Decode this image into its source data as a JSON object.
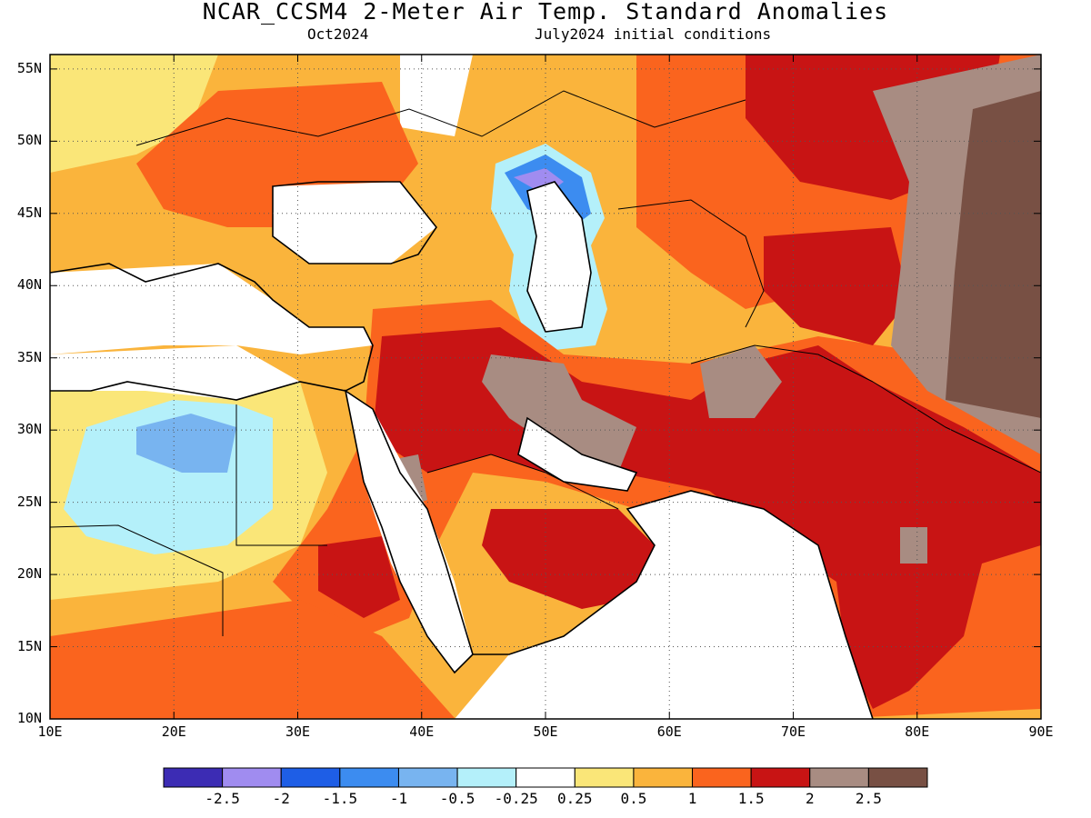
{
  "header": {
    "title": "NCAR_CCSM4 2-Meter Air Temp. Standard Anomalies",
    "valid_month": "Oct2024",
    "initial_conditions": "July2024 initial conditions"
  },
  "map": {
    "lon_range": [
      10,
      90
    ],
    "lat_range": [
      10,
      56
    ],
    "lat_ticks": [
      "55N",
      "50N",
      "45N",
      "40N",
      "35N",
      "30N",
      "25N",
      "20N",
      "15N",
      "10N"
    ],
    "lon_ticks": [
      "10E",
      "20E",
      "30E",
      "40E",
      "50E",
      "60E",
      "70E",
      "80E",
      "90E"
    ],
    "gridlines": "dotted"
  },
  "colorbar": {
    "colors": [
      "#3c2cb4",
      "#a08cf0",
      "#1e5ee6",
      "#3c8cf0",
      "#78b4f0",
      "#b4f0fa",
      "#ffffff",
      "#fae678",
      "#fab43c",
      "#fa641e",
      "#c81414",
      "#a88c82",
      "#785044"
    ],
    "labels": [
      "-2.5",
      "-2",
      "-1.5",
      "-1",
      "-0.5",
      "-0.25",
      "0.25",
      "0.5",
      "1",
      "1.5",
      "2",
      "2.5"
    ]
  }
}
